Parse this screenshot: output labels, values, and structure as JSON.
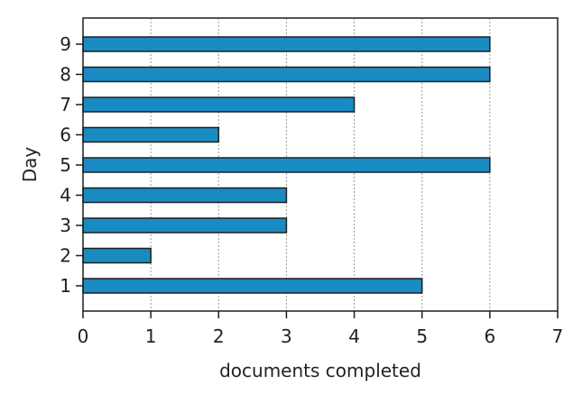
{
  "chart_data": {
    "type": "bar",
    "orientation": "horizontal",
    "categories": [
      "1",
      "2",
      "3",
      "4",
      "5",
      "6",
      "7",
      "8",
      "9"
    ],
    "values": [
      5,
      1,
      3,
      3,
      6,
      2,
      4,
      6,
      6
    ],
    "xlabel": "documents completed",
    "ylabel": "Day",
    "xlim": [
      0,
      7
    ],
    "xticks": [
      "0",
      "1",
      "2",
      "3",
      "4",
      "5",
      "6",
      "7"
    ],
    "grid": "vertical dotted",
    "legend": "none",
    "colors": {
      "bar_fill": "#1a8bc2",
      "bar_stroke": "#1f1f1f",
      "grid": "#9a9a9a",
      "axis": "#1f1f1f"
    }
  }
}
